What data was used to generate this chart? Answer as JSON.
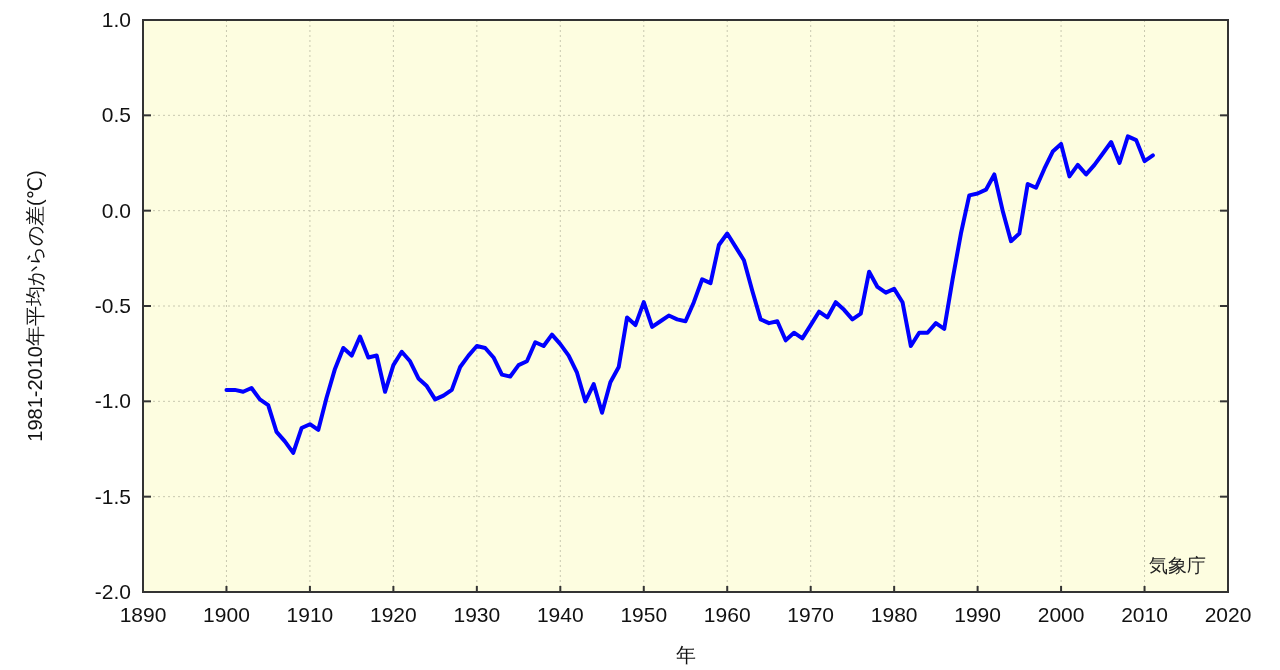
{
  "chart_data": {
    "type": "line",
    "xlabel": "年",
    "ylabel": "1981-2010年平均からの差(℃)",
    "annotations": [
      "気象庁"
    ],
    "x": [
      1900,
      1901,
      1902,
      1903,
      1904,
      1905,
      1906,
      1907,
      1908,
      1909,
      1910,
      1911,
      1912,
      1913,
      1914,
      1915,
      1916,
      1917,
      1918,
      1919,
      1920,
      1921,
      1922,
      1923,
      1924,
      1925,
      1926,
      1927,
      1928,
      1929,
      1930,
      1931,
      1932,
      1933,
      1934,
      1935,
      1936,
      1937,
      1938,
      1939,
      1940,
      1941,
      1942,
      1943,
      1944,
      1945,
      1946,
      1947,
      1948,
      1949,
      1950,
      1951,
      1952,
      1953,
      1954,
      1955,
      1956,
      1957,
      1958,
      1959,
      1960,
      1961,
      1962,
      1963,
      1964,
      1965,
      1966,
      1967,
      1968,
      1969,
      1970,
      1971,
      1972,
      1973,
      1974,
      1975,
      1976,
      1977,
      1978,
      1979,
      1980,
      1981,
      1982,
      1983,
      1984,
      1985,
      1986,
      1987,
      1988,
      1989,
      1990,
      1991,
      1992,
      1993,
      1994,
      1995,
      1996,
      1997,
      1998,
      1999,
      2000,
      2001,
      2002,
      2003,
      2004,
      2005,
      2006,
      2007,
      2008,
      2009,
      2010,
      2011
    ],
    "series": [
      {
        "color": "#0000ff",
        "values": [
          -0.94,
          -0.94,
          -0.95,
          -0.93,
          -0.99,
          -1.02,
          -1.16,
          -1.21,
          -1.27,
          -1.14,
          -1.12,
          -1.15,
          -0.98,
          -0.83,
          -0.72,
          -0.76,
          -0.66,
          -0.77,
          -0.76,
          -0.95,
          -0.81,
          -0.74,
          -0.79,
          -0.88,
          -0.92,
          -0.99,
          -0.97,
          -0.94,
          -0.82,
          -0.76,
          -0.71,
          -0.72,
          -0.77,
          -0.86,
          -0.87,
          -0.81,
          -0.79,
          -0.69,
          -0.71,
          -0.65,
          -0.7,
          -0.76,
          -0.85,
          -1.0,
          -0.91,
          -1.06,
          -0.9,
          -0.82,
          -0.56,
          -0.6,
          -0.48,
          -0.61,
          -0.58,
          -0.55,
          -0.57,
          -0.58,
          -0.48,
          -0.36,
          -0.38,
          -0.18,
          -0.12,
          -0.19,
          -0.26,
          -0.42,
          -0.57,
          -0.59,
          -0.58,
          -0.68,
          -0.64,
          -0.67,
          -0.6,
          -0.53,
          -0.56,
          -0.48,
          -0.52,
          -0.57,
          -0.54,
          -0.32,
          -0.4,
          -0.43,
          -0.41,
          -0.48,
          -0.71,
          -0.64,
          -0.64,
          -0.59,
          -0.62,
          -0.36,
          -0.12,
          0.08,
          0.09,
          0.11,
          0.19,
          0.0,
          -0.16,
          -0.12,
          0.14,
          0.12,
          0.22,
          0.31,
          0.35,
          0.18,
          0.24,
          0.19,
          0.24,
          0.3,
          0.36,
          0.25,
          0.39,
          0.37,
          0.26,
          0.29
        ]
      }
    ],
    "xlim": [
      1890,
      2020
    ],
    "xticks": [
      1890,
      1900,
      1910,
      1920,
      1930,
      1940,
      1950,
      1960,
      1970,
      1980,
      1990,
      2000,
      2010,
      2020
    ],
    "ylim": [
      -2.0,
      1.0
    ],
    "yticks": [
      {
        "value": -2.0,
        "label": "-2.0"
      },
      {
        "value": -1.5,
        "label": "-1.5"
      },
      {
        "value": -1.0,
        "label": "-1.0"
      },
      {
        "value": -0.5,
        "label": "-0.5"
      },
      {
        "value": 0.0,
        "label": "0.0"
      },
      {
        "value": 0.5,
        "label": "0.5"
      },
      {
        "value": 1.0,
        "label": "1.0"
      }
    ],
    "grid": true
  }
}
